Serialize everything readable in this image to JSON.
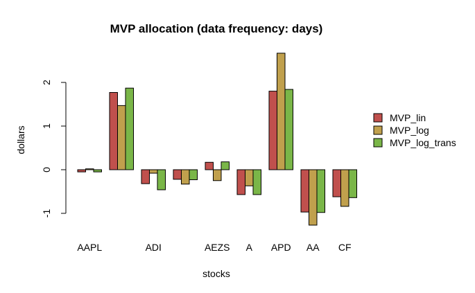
{
  "chart_data": {
    "type": "bar",
    "title": "MVP allocation (data frequency: days)",
    "xlabel": "stocks",
    "ylabel": "dollars",
    "ylim": [
      -1.5,
      3.0
    ],
    "yticks": [
      -1,
      0,
      1,
      2
    ],
    "categories": [
      "AAPL",
      "",
      "ADI",
      "",
      "AEZS",
      "A",
      "APD",
      "AA",
      "CF"
    ],
    "series": [
      {
        "name": "MVP_lin",
        "color": "#c0504d",
        "values": [
          -0.05,
          1.77,
          -0.32,
          -0.22,
          0.17,
          -0.57,
          1.8,
          -0.97,
          -0.62
        ]
      },
      {
        "name": "MVP_log",
        "color": "#c0a04d",
        "values": [
          0.02,
          1.47,
          -0.08,
          -0.33,
          -0.25,
          -0.37,
          2.67,
          -1.27,
          -0.84
        ]
      },
      {
        "name": "MVP_log_trans",
        "color": "#7ab648",
        "values": [
          -0.05,
          1.87,
          -0.46,
          -0.23,
          0.18,
          -0.57,
          1.84,
          -0.98,
          -0.64
        ]
      }
    ],
    "legend": "right",
    "grid": false
  }
}
